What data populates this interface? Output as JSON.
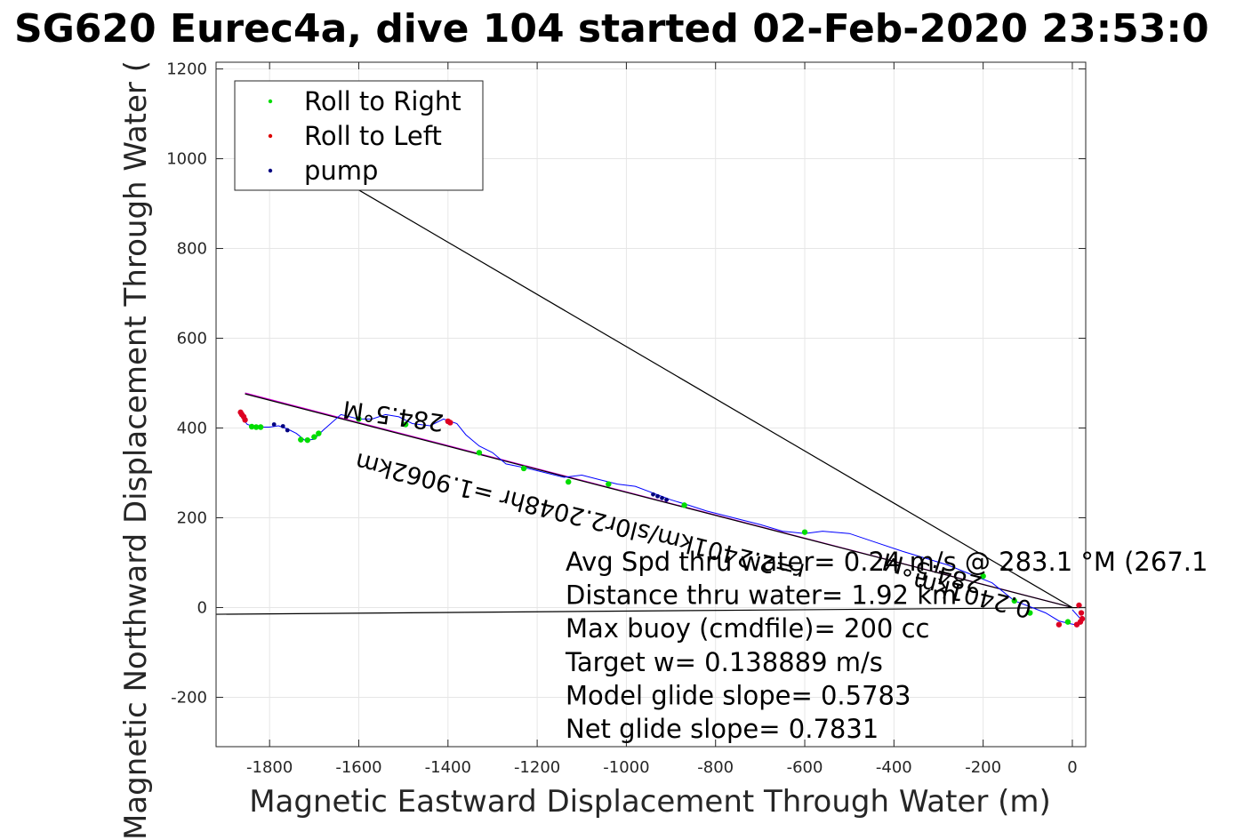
{
  "chart_data": {
    "type": "line",
    "title": "SG620 Eurec4a, dive 104 started 02-Feb-2020 23:53:0",
    "xlabel": "Magnetic Eastward Displacement Through Water (m)",
    "ylabel": "Magnetic Northward Displacement Through Water (",
    "xlim": [
      -1920,
      30
    ],
    "ylim": [
      -310,
      1215
    ],
    "xticks": [
      -1800,
      -1600,
      -1400,
      -1200,
      -1000,
      -800,
      -600,
      -400,
      -200,
      0
    ],
    "yticks": [
      -200,
      0,
      200,
      400,
      600,
      800,
      1000,
      1200
    ],
    "grid": true,
    "legend": {
      "placement": "top-left",
      "entries": [
        {
          "label": "Roll to Right",
          "color": "#00dd00"
        },
        {
          "label": "Roll to Left",
          "color": "#dd0000"
        },
        {
          "label": "pump",
          "color": "#000080"
        }
      ]
    },
    "track": {
      "name": "track",
      "color": "#0000ff",
      "x": [
        0,
        18,
        15,
        -10,
        -30,
        -60,
        -90,
        -130,
        -180,
        -230,
        -280,
        -330,
        -380,
        -440,
        -500,
        -560,
        -600,
        -650,
        -700,
        -760,
        -820,
        -860,
        -900,
        -940,
        -980,
        -1020,
        -1060,
        -1100,
        -1140,
        -1180,
        -1220,
        -1270,
        -1300,
        -1330,
        -1360,
        -1380,
        -1410,
        -1440,
        -1480,
        -1510,
        -1540,
        -1570,
        -1600,
        -1640,
        -1680,
        -1700,
        -1720,
        -1740,
        -1760,
        -1780,
        -1800,
        -1830,
        -1850,
        -1860,
        -1865
      ],
      "y": [
        -5,
        -25,
        -40,
        -35,
        -30,
        -12,
        0,
        15,
        55,
        75,
        95,
        110,
        125,
        145,
        165,
        170,
        165,
        170,
        185,
        200,
        215,
        228,
        240,
        255,
        270,
        275,
        285,
        295,
        290,
        300,
        310,
        320,
        345,
        360,
        385,
        410,
        420,
        405,
        410,
        425,
        430,
        420,
        420,
        430,
        395,
        375,
        372,
        388,
        398,
        405,
        402,
        402,
        408,
        420,
        435
      ]
    },
    "roll_right": {
      "x": [
        -1840,
        -1830,
        -1820,
        -1730,
        -1715,
        -1700,
        -1690,
        -1600,
        -1495,
        -1330,
        -1230,
        -1130,
        -1040,
        -870,
        -600,
        -200,
        -130,
        -95,
        -10
      ],
      "y": [
        403,
        402,
        402,
        374,
        373,
        380,
        388,
        420,
        408,
        345,
        310,
        280,
        275,
        228,
        168,
        70,
        15,
        -12,
        -32
      ]
    },
    "roll_left": {
      "x": [
        -1865,
        -1862,
        -1858,
        -1855,
        -1400,
        -1395,
        15,
        20,
        22,
        18,
        10,
        -30
      ],
      "y": [
        435,
        430,
        425,
        418,
        415,
        412,
        5,
        -12,
        -25,
        -32,
        -38,
        -38
      ]
    },
    "pump": {
      "x": [
        -1790,
        -1770,
        -1760,
        -940,
        -930,
        -920,
        -910
      ],
      "y": [
        408,
        404,
        395,
        252,
        248,
        244,
        240
      ]
    },
    "lines": [
      {
        "name": "magenta",
        "color": "#dd00dd",
        "x": [
          -1855,
          0
        ],
        "y": [
          478,
          0
        ]
      },
      {
        "name": "black-upper",
        "color": "#000000",
        "x": [
          -1720,
          0
        ],
        "y": [
          1000,
          0
        ]
      },
      {
        "name": "black-horizontal",
        "color": "#000000",
        "x": [
          -1920,
          30
        ],
        "y": [
          -15,
          0
        ]
      },
      {
        "name": "black-parallel",
        "color": "#000000",
        "x": [
          -1855,
          0
        ],
        "y": [
          476,
          0
        ]
      }
    ],
    "rotated_labels": [
      {
        "text": "284.5°M",
        "x": -1520,
        "y": 445,
        "angle": 188
      },
      {
        "text": "r=2.2401km/sl0r2.2048hr =1.9062km",
        "x": -1100,
        "y": 220,
        "angle": 194
      },
      {
        "text": "284.5°M",
        "x": -310,
        "y": 95,
        "angle": 194
      },
      {
        "text": "0.2401km",
        "x": -220,
        "y": 45,
        "angle": 194
      }
    ],
    "stats": [
      "Avg Spd thru water= 0.24 m/s @ 283.1 °M (267.1",
      "Distance thru water=  1.92 km",
      "Max buoy (cmdfile)= 200 cc",
      "Target w= 0.138889 m/s",
      "Model glide slope= 0.5783",
      "Net glide slope= 0.7831"
    ]
  }
}
